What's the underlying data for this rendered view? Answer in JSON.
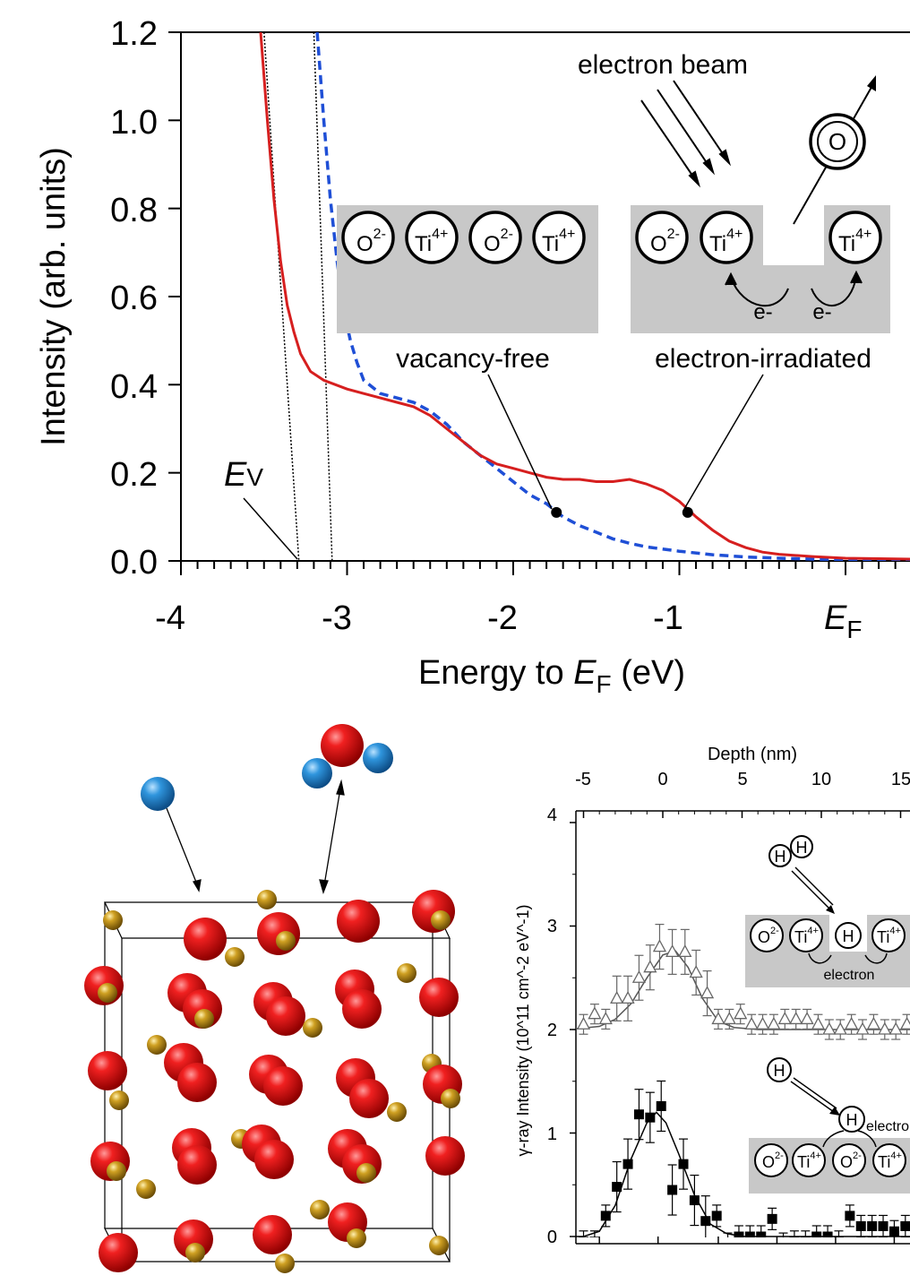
{
  "chart_data": [
    {
      "type": "line",
      "xlabel": "Energy to E_F (eV)",
      "ylabel": "Intensity (arb. units)",
      "xlim": [
        -4,
        0.4
      ],
      "ylim": [
        0,
        1.2
      ],
      "x_ticks": [
        "-4",
        "-3",
        "-2",
        "-1",
        "E_F"
      ],
      "y_ticks": [
        "0.0",
        "0.2",
        "0.4",
        "0.6",
        "0.8",
        "1.0",
        "1.2"
      ],
      "series": [
        {
          "name": "electron-irradiated",
          "color": "#d61f1f",
          "style": "solid",
          "points": [
            [
              -3.52,
              1.2
            ],
            [
              -3.48,
              1.0
            ],
            [
              -3.44,
              0.82
            ],
            [
              -3.4,
              0.68
            ],
            [
              -3.36,
              0.58
            ],
            [
              -3.32,
              0.52
            ],
            [
              -3.28,
              0.47
            ],
            [
              -3.22,
              0.43
            ],
            [
              -3.14,
              0.41
            ],
            [
              -3.0,
              0.39
            ],
            [
              -2.9,
              0.38
            ],
            [
              -2.8,
              0.37
            ],
            [
              -2.7,
              0.36
            ],
            [
              -2.6,
              0.35
            ],
            [
              -2.5,
              0.33
            ],
            [
              -2.4,
              0.3
            ],
            [
              -2.3,
              0.27
            ],
            [
              -2.2,
              0.24
            ],
            [
              -2.1,
              0.22
            ],
            [
              -2.0,
              0.21
            ],
            [
              -1.9,
              0.2
            ],
            [
              -1.8,
              0.19
            ],
            [
              -1.7,
              0.185
            ],
            [
              -1.6,
              0.185
            ],
            [
              -1.5,
              0.18
            ],
            [
              -1.4,
              0.18
            ],
            [
              -1.3,
              0.185
            ],
            [
              -1.2,
              0.175
            ],
            [
              -1.1,
              0.16
            ],
            [
              -1.0,
              0.135
            ],
            [
              -0.9,
              0.1
            ],
            [
              -0.8,
              0.07
            ],
            [
              -0.7,
              0.045
            ],
            [
              -0.6,
              0.03
            ],
            [
              -0.5,
              0.02
            ],
            [
              -0.4,
              0.015
            ],
            [
              -0.2,
              0.01
            ],
            [
              0.0,
              0.006
            ],
            [
              0.2,
              0.005
            ],
            [
              0.4,
              0.004
            ]
          ]
        },
        {
          "name": "vacancy-free",
          "color": "#1f4fd6",
          "style": "dashed",
          "points": [
            [
              -3.18,
              1.2
            ],
            [
              -3.14,
              1.0
            ],
            [
              -3.1,
              0.82
            ],
            [
              -3.06,
              0.68
            ],
            [
              -3.02,
              0.57
            ],
            [
              -2.98,
              0.5
            ],
            [
              -2.94,
              0.45
            ],
            [
              -2.9,
              0.41
            ],
            [
              -2.8,
              0.38
            ],
            [
              -2.7,
              0.37
            ],
            [
              -2.6,
              0.36
            ],
            [
              -2.5,
              0.34
            ],
            [
              -2.4,
              0.31
            ],
            [
              -2.3,
              0.27
            ],
            [
              -2.2,
              0.24
            ],
            [
              -2.1,
              0.21
            ],
            [
              -2.0,
              0.18
            ],
            [
              -1.9,
              0.15
            ],
            [
              -1.8,
              0.13
            ],
            [
              -1.7,
              0.1
            ],
            [
              -1.6,
              0.08
            ],
            [
              -1.5,
              0.065
            ],
            [
              -1.4,
              0.05
            ],
            [
              -1.3,
              0.04
            ],
            [
              -1.2,
              0.032
            ],
            [
              -1.0,
              0.022
            ],
            [
              -0.8,
              0.014
            ],
            [
              -0.6,
              0.009
            ],
            [
              -0.4,
              0.006
            ],
            [
              -0.2,
              0.004
            ],
            [
              0.0,
              0.003
            ],
            [
              0.4,
              0.002
            ]
          ]
        }
      ],
      "extrapolation_lines": [
        {
          "from": [
            -3.5,
            1.2
          ],
          "to": [
            -3.29,
            0.0
          ]
        },
        {
          "from": [
            -3.2,
            1.2
          ],
          "to": [
            -3.09,
            0.0
          ]
        }
      ],
      "markers": [
        {
          "series": "vacancy-free",
          "x": -1.74,
          "y": 0.11
        },
        {
          "series": "electron-irradiated",
          "x": -0.95,
          "y": 0.11
        }
      ],
      "annotations": {
        "ev": "E",
        "ev_sub": "V",
        "ef": "E",
        "ef_sub": "F",
        "xlabel_prefix": "Energy to ",
        "xlabel_suffix": " (eV)",
        "electron_beam": "electron beam",
        "vacancy_free": "vacancy-free",
        "electron_irradiated": "electron-irradiated",
        "o_atom": "O",
        "e_minus": "e-",
        "o_ion": "O",
        "o_charge": "2-",
        "ti_ion": "Ti",
        "ti_charge": "4+"
      }
    },
    {
      "type": "scatter",
      "xlabel": "Depth (nm)",
      "ylabel": "γ-ray Intensity (10^11 cm^-2 eV^-1)",
      "xlim": [
        -6,
        16
      ],
      "ylim": [
        -0.2,
        4
      ],
      "x_ticks": [
        "-5",
        "0",
        "5",
        "10",
        "15"
      ],
      "y_ticks": [
        "0",
        "1",
        "2",
        "3",
        "4"
      ],
      "series": [
        {
          "name": "open triangles",
          "marker": "triangle-open",
          "color": "#777777",
          "points": [
            [
              -5.0,
              2.05
            ],
            [
              -4.3,
              2.15
            ],
            [
              -3.6,
              2.1
            ],
            [
              -2.9,
              2.3
            ],
            [
              -2.2,
              2.3
            ],
            [
              -1.5,
              2.5
            ],
            [
              -0.8,
              2.6
            ],
            [
              -0.2,
              2.8
            ],
            [
              0.6,
              2.75
            ],
            [
              1.4,
              2.75
            ],
            [
              2.1,
              2.55
            ],
            [
              2.8,
              2.35
            ],
            [
              3.5,
              2.1
            ],
            [
              4.2,
              2.1
            ],
            [
              4.9,
              2.15
            ],
            [
              5.6,
              2.05
            ],
            [
              6.3,
              2.05
            ],
            [
              7.0,
              2.05
            ],
            [
              7.7,
              2.1
            ],
            [
              8.4,
              2.1
            ],
            [
              9.1,
              2.1
            ],
            [
              9.8,
              2.05
            ],
            [
              10.5,
              2.0
            ],
            [
              11.2,
              2.0
            ],
            [
              11.9,
              2.05
            ],
            [
              12.6,
              2.0
            ],
            [
              13.3,
              2.05
            ],
            [
              14.0,
              2.0
            ],
            [
              14.7,
              2.0
            ],
            [
              15.4,
              2.05
            ]
          ],
          "fit": [
            [
              -6,
              2.0
            ],
            [
              -4,
              2.03
            ],
            [
              -3,
              2.1
            ],
            [
              -2,
              2.25
            ],
            [
              -1,
              2.5
            ],
            [
              0,
              2.72
            ],
            [
              0.8,
              2.76
            ],
            [
              1.6,
              2.6
            ],
            [
              2.5,
              2.3
            ],
            [
              3.5,
              2.08
            ],
            [
              4.5,
              2.02
            ],
            [
              6,
              2.0
            ],
            [
              16,
              2.0
            ]
          ]
        },
        {
          "name": "filled squares",
          "marker": "square-filled",
          "color": "#000000",
          "points": [
            [
              -5.0,
              -0.05
            ],
            [
              -4.3,
              -0.05
            ],
            [
              -3.6,
              0.2
            ],
            [
              -2.9,
              0.48
            ],
            [
              -2.2,
              0.7
            ],
            [
              -1.5,
              1.18
            ],
            [
              -0.8,
              1.15
            ],
            [
              -0.1,
              1.26
            ],
            [
              0.6,
              0.45
            ],
            [
              1.3,
              0.7
            ],
            [
              2.0,
              0.35
            ],
            [
              2.7,
              0.15
            ],
            [
              3.4,
              0.2
            ],
            [
              4.1,
              -0.07
            ],
            [
              4.8,
              0.0
            ],
            [
              5.5,
              0.0
            ],
            [
              6.2,
              0.0
            ],
            [
              6.9,
              0.17
            ],
            [
              7.6,
              -0.07
            ],
            [
              8.3,
              -0.05
            ],
            [
              9.0,
              -0.05
            ],
            [
              9.7,
              0.0
            ],
            [
              10.4,
              0.0
            ],
            [
              11.1,
              -0.05
            ],
            [
              11.8,
              0.2
            ],
            [
              12.5,
              0.1
            ],
            [
              13.2,
              0.1
            ],
            [
              13.9,
              0.1
            ],
            [
              14.6,
              0.05
            ],
            [
              15.3,
              0.1
            ]
          ],
          "fit": [
            [
              -6,
              0.0
            ],
            [
              -5,
              0.0
            ],
            [
              -4,
              0.05
            ],
            [
              -3,
              0.3
            ],
            [
              -2,
              0.75
            ],
            [
              -1,
              1.1
            ],
            [
              -0.4,
              1.2
            ],
            [
              0.2,
              1.1
            ],
            [
              1,
              0.8
            ],
            [
              2,
              0.4
            ],
            [
              3,
              0.12
            ],
            [
              4,
              0.03
            ],
            [
              5,
              0.0
            ],
            [
              16,
              0.0
            ]
          ]
        }
      ],
      "annotations": {
        "h": "H",
        "electron_top": "electron",
        "electron_bottom": "electron",
        "o_ion": "O",
        "o_charge": "2-",
        "ti_ion": "Ti",
        "ti_charge": "4+"
      }
    }
  ],
  "figure_colors": {
    "oxygen_atom": "#e01818",
    "titanium_atom": "#c99a1e",
    "hydrogen_atom": "#2b8fd8",
    "panel_gray": "#c8c8c8"
  }
}
